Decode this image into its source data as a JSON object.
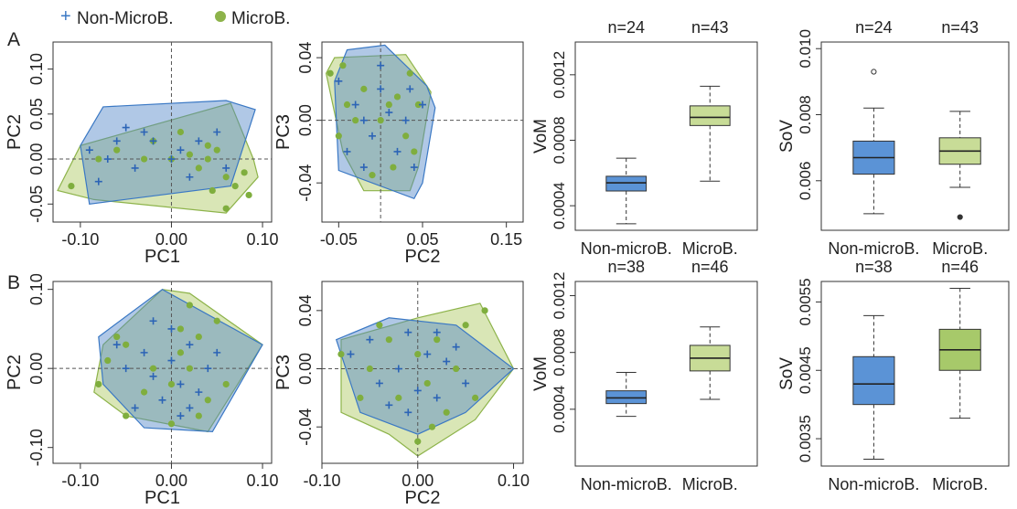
{
  "legend": {
    "items": [
      {
        "label": "Non-MicroB.",
        "symbol": "+",
        "color": "#3a78c4"
      },
      {
        "label": "MicroB.",
        "symbol": "●",
        "color": "#8db34a"
      }
    ],
    "placement": "top-left"
  },
  "panel_labels": [
    "A",
    "B"
  ],
  "colors": {
    "non_microb_hull_fill": "#4f85c8",
    "microb_hull_fill": "#b9d27a",
    "overlap_fill": "#3f7f83",
    "non_microb_box": "#5b93d6",
    "microb_box": "#c8dc97",
    "microb_box_B": "#a7c96a"
  },
  "chart_data": [
    {
      "id": "A-pc1-pc2",
      "type": "scatter",
      "xlabel": "PC1",
      "ylabel": "PC2",
      "xlim": [
        -0.13,
        0.11
      ],
      "ylim": [
        -0.07,
        0.13
      ],
      "xticks": [
        "-0.10",
        "0.00",
        "0.10"
      ],
      "xtick_values": [
        -0.1,
        0.0,
        0.1
      ],
      "yticks": [
        "-0.05",
        "0.00",
        "0.05",
        "0.10"
      ],
      "ytick_values": [
        -0.05,
        0.0,
        0.05,
        0.1
      ],
      "reflines": {
        "x": 0.0,
        "y": 0.0
      },
      "hull_non_microb": [
        [
          -0.1,
          0.015
        ],
        [
          -0.075,
          0.058
        ],
        [
          0.06,
          0.065
        ],
        [
          0.092,
          0.055
        ],
        [
          0.065,
          -0.03
        ],
        [
          -0.09,
          -0.05
        ]
      ],
      "hull_microb": [
        [
          -0.125,
          -0.035
        ],
        [
          -0.1,
          0.015
        ],
        [
          0.065,
          0.062
        ],
        [
          0.09,
          0.0
        ],
        [
          0.095,
          -0.02
        ],
        [
          0.06,
          -0.06
        ],
        [
          -0.085,
          -0.045
        ]
      ],
      "series": [
        {
          "name": "Non-MicroB.",
          "points": [
            [
              -0.09,
              0.01
            ],
            [
              -0.07,
              0.0
            ],
            [
              -0.06,
              0.02
            ],
            [
              -0.04,
              -0.01
            ],
            [
              -0.03,
              0.03
            ],
            [
              -0.02,
              0.02
            ],
            [
              0.0,
              0.0
            ],
            [
              0.01,
              0.01
            ],
            [
              0.03,
              0.02
            ],
            [
              0.05,
              0.03
            ],
            [
              -0.08,
              -0.025
            ],
            [
              -0.05,
              0.035
            ],
            [
              0.06,
              -0.01
            ],
            [
              0.02,
              -0.02
            ]
          ]
        },
        {
          "name": "MicroB.",
          "points": [
            [
              -0.11,
              -0.03
            ],
            [
              -0.08,
              0.0
            ],
            [
              -0.06,
              0.01
            ],
            [
              -0.03,
              0.0
            ],
            [
              0.0,
              0.0
            ],
            [
              0.02,
              0.005
            ],
            [
              0.03,
              -0.01
            ],
            [
              0.04,
              0.0
            ],
            [
              0.05,
              0.01
            ],
            [
              0.06,
              -0.02
            ],
            [
              0.07,
              -0.03
            ],
            [
              0.08,
              -0.015
            ],
            [
              0.085,
              -0.04
            ],
            [
              0.06,
              -0.055
            ],
            [
              0.04,
              0.015
            ],
            [
              0.01,
              0.03
            ],
            [
              -0.02,
              0.02
            ],
            [
              0.045,
              -0.035
            ]
          ]
        }
      ]
    },
    {
      "id": "A-pc2-pc3",
      "type": "scatter",
      "xlabel": "PC2",
      "ylabel": "PC3",
      "xlim": [
        -0.07,
        0.17
      ],
      "ylim": [
        -0.065,
        0.05
      ],
      "xticks": [
        "-0.05",
        "0.05",
        "0.15"
      ],
      "xtick_values": [
        -0.05,
        0.05,
        0.15
      ],
      "yticks": [
        "-0.04",
        "0.00",
        "0.04"
      ],
      "ytick_values": [
        -0.04,
        0.0,
        0.04
      ],
      "reflines": {
        "x": 0.0,
        "y": 0.0
      },
      "hull_non_microb": [
        [
          -0.055,
          0.025
        ],
        [
          -0.04,
          0.045
        ],
        [
          0.005,
          0.048
        ],
        [
          0.055,
          0.022
        ],
        [
          0.065,
          0.008
        ],
        [
          0.05,
          -0.04
        ],
        [
          0.04,
          -0.05
        ],
        [
          -0.05,
          -0.032
        ]
      ],
      "hull_microb": [
        [
          -0.065,
          0.03
        ],
        [
          -0.055,
          0.04
        ],
        [
          0.03,
          0.042
        ],
        [
          0.06,
          0.018
        ],
        [
          0.045,
          -0.03
        ],
        [
          0.035,
          -0.045
        ],
        [
          -0.02,
          -0.045
        ],
        [
          -0.045,
          -0.02
        ]
      ],
      "series": [
        {
          "name": "Non-MicroB.",
          "points": [
            [
              -0.05,
              0.025
            ],
            [
              -0.03,
              0.01
            ],
            [
              -0.02,
              0.0
            ],
            [
              -0.01,
              -0.01
            ],
            [
              0.0,
              0.02
            ],
            [
              0.01,
              0.005
            ],
            [
              0.02,
              -0.02
            ],
            [
              0.03,
              0.0
            ],
            [
              -0.04,
              -0.02
            ],
            [
              0.04,
              -0.03
            ],
            [
              0.05,
              0.01
            ],
            [
              -0.02,
              -0.03
            ],
            [
              0.0,
              0.035
            ],
            [
              0.035,
              0.02
            ]
          ]
        },
        {
          "name": "MicroB.",
          "points": [
            [
              -0.06,
              0.03
            ],
            [
              -0.05,
              -0.01
            ],
            [
              -0.04,
              0.01
            ],
            [
              -0.03,
              0.0
            ],
            [
              -0.02,
              0.02
            ],
            [
              0.0,
              0.0
            ],
            [
              0.01,
              0.01
            ],
            [
              0.02,
              0.015
            ],
            [
              0.03,
              -0.01
            ],
            [
              0.035,
              0.03
            ],
            [
              -0.01,
              -0.035
            ],
            [
              0.015,
              -0.03
            ],
            [
              0.04,
              -0.02
            ],
            [
              0.045,
              0.01
            ],
            [
              -0.045,
              0.035
            ]
          ]
        }
      ]
    },
    {
      "id": "A-vom",
      "type": "box",
      "ylabel": "VoM",
      "categories": [
        "Non-microB.",
        "MicroB."
      ],
      "n_labels": [
        "n=24",
        "n=43"
      ],
      "ylim": [
        0.00025,
        0.0014
      ],
      "yticks": [
        "0.0004",
        "0.0008",
        "0.0012"
      ],
      "ytick_values": [
        0.0004,
        0.0008,
        0.0012
      ],
      "boxes": [
        {
          "whisker_low": 0.00029,
          "q1": 0.00049,
          "median": 0.00054,
          "q3": 0.00058,
          "whisker_high": 0.00069,
          "outliers": []
        },
        {
          "whisker_low": 0.00055,
          "q1": 0.00089,
          "median": 0.00094,
          "q3": 0.00101,
          "whisker_high": 0.00113,
          "outliers": []
        }
      ]
    },
    {
      "id": "A-sov",
      "type": "box",
      "ylabel": "SoV",
      "categories": [
        "Non-microB.",
        "MicroB."
      ],
      "n_labels": [
        "n=24",
        "n=43"
      ],
      "ylim": [
        0.0045,
        0.0102
      ],
      "yticks": [
        "0.006",
        "0.008",
        "0.010"
      ],
      "ytick_values": [
        0.006,
        0.008,
        0.01
      ],
      "boxes": [
        {
          "whisker_low": 0.005,
          "q1": 0.0062,
          "median": 0.0067,
          "q3": 0.0072,
          "whisker_high": 0.0082,
          "outliers": [
            0.0093
          ]
        },
        {
          "whisker_low": 0.0058,
          "q1": 0.0065,
          "median": 0.0069,
          "q3": 0.0073,
          "whisker_high": 0.0081,
          "outliers": [
            0.0049
          ]
        }
      ]
    },
    {
      "id": "B-pc1-pc2",
      "type": "scatter",
      "xlabel": "PC1",
      "ylabel": "PC2",
      "xlim": [
        -0.13,
        0.11
      ],
      "ylim": [
        -0.12,
        0.11
      ],
      "xticks": [
        "-0.10",
        "0.00",
        "0.10"
      ],
      "xtick_values": [
        -0.1,
        0.0,
        0.1
      ],
      "yticks": [
        "-0.10",
        "0.00",
        "0.10"
      ],
      "ytick_values": [
        -0.1,
        0.0,
        0.1
      ],
      "reflines": {
        "x": 0.0,
        "y": 0.0
      },
      "hull_non_microb": [
        [
          -0.08,
          0.04
        ],
        [
          -0.01,
          0.1
        ],
        [
          0.1,
          0.03
        ],
        [
          0.045,
          -0.08
        ],
        [
          -0.03,
          -0.075
        ],
        [
          -0.075,
          -0.02
        ]
      ],
      "hull_microb": [
        [
          -0.085,
          -0.03
        ],
        [
          -0.075,
          0.03
        ],
        [
          -0.01,
          0.1
        ],
        [
          0.02,
          0.095
        ],
        [
          0.1,
          0.03
        ],
        [
          0.04,
          -0.08
        ],
        [
          -0.05,
          -0.06
        ]
      ],
      "series": [
        {
          "name": "Non-MicroB.",
          "points": [
            [
              -0.06,
              0.03
            ],
            [
              -0.05,
              0.0
            ],
            [
              -0.03,
              0.02
            ],
            [
              -0.02,
              -0.01
            ],
            [
              0.0,
              0.01
            ],
            [
              0.01,
              -0.02
            ],
            [
              0.02,
              0.03
            ],
            [
              0.03,
              -0.03
            ],
            [
              0.0,
              0.05
            ],
            [
              -0.01,
              -0.04
            ],
            [
              0.04,
              0.0
            ],
            [
              -0.04,
              -0.05
            ],
            [
              0.02,
              -0.05
            ],
            [
              0.05,
              0.02
            ],
            [
              -0.02,
              0.06
            ],
            [
              0.01,
              -0.06
            ]
          ]
        },
        {
          "name": "MicroB.",
          "points": [
            [
              -0.08,
              -0.02
            ],
            [
              -0.07,
              0.01
            ],
            [
              -0.05,
              0.03
            ],
            [
              -0.03,
              -0.03
            ],
            [
              -0.02,
              0.0
            ],
            [
              0.0,
              -0.02
            ],
            [
              0.01,
              0.02
            ],
            [
              0.02,
              0.0
            ],
            [
              0.03,
              0.04
            ],
            [
              0.04,
              -0.04
            ],
            [
              0.05,
              0.06
            ],
            [
              0.06,
              -0.02
            ],
            [
              0.02,
              0.08
            ],
            [
              -0.05,
              -0.06
            ],
            [
              0.0,
              -0.07
            ],
            [
              0.03,
              -0.06
            ],
            [
              -0.06,
              0.04
            ],
            [
              0.01,
              0.05
            ]
          ]
        }
      ]
    },
    {
      "id": "B-pc2-pc3",
      "type": "scatter",
      "xlabel": "PC2",
      "ylabel": "PC3",
      "xlim": [
        -0.1,
        0.11
      ],
      "ylim": [
        -0.065,
        0.06
      ],
      "xticks": [
        "-0.10",
        "0.00",
        "0.10"
      ],
      "xtick_values": [
        -0.1,
        0.0,
        0.1
      ],
      "yticks": [
        "-0.04",
        "0.00",
        "0.04"
      ],
      "ytick_values": [
        -0.04,
        0.0,
        0.04
      ],
      "reflines": {
        "x": 0.0,
        "y": 0.0
      },
      "hull_non_microb": [
        [
          -0.085,
          0.02
        ],
        [
          -0.03,
          0.035
        ],
        [
          0.04,
          0.03
        ],
        [
          0.1,
          0.0
        ],
        [
          0.05,
          -0.03
        ],
        [
          0.0,
          -0.045
        ],
        [
          -0.06,
          -0.03
        ]
      ],
      "hull_microb": [
        [
          -0.08,
          -0.03
        ],
        [
          -0.08,
          0.02
        ],
        [
          0.0,
          0.035
        ],
        [
          0.065,
          0.045
        ],
        [
          0.1,
          0.0
        ],
        [
          0.06,
          -0.035
        ],
        [
          0.0,
          -0.06
        ],
        [
          -0.03,
          -0.045
        ]
      ],
      "series": [
        {
          "name": "Non-MicroB.",
          "points": [
            [
              -0.07,
              0.01
            ],
            [
              -0.05,
              0.02
            ],
            [
              -0.04,
              -0.01
            ],
            [
              -0.02,
              0.0
            ],
            [
              -0.01,
              0.025
            ],
            [
              0.0,
              -0.015
            ],
            [
              0.01,
              0.01
            ],
            [
              0.02,
              -0.02
            ],
            [
              0.03,
              0.005
            ],
            [
              -0.03,
              -0.025
            ],
            [
              0.04,
              0.015
            ],
            [
              -0.01,
              -0.03
            ],
            [
              0.02,
              0.025
            ],
            [
              0.05,
              -0.01
            ]
          ]
        },
        {
          "name": "MicroB.",
          "points": [
            [
              -0.08,
              0.01
            ],
            [
              -0.06,
              -0.02
            ],
            [
              -0.05,
              0.0
            ],
            [
              -0.03,
              0.02
            ],
            [
              -0.02,
              -0.02
            ],
            [
              0.0,
              0.01
            ],
            [
              0.01,
              -0.01
            ],
            [
              0.02,
              0.02
            ],
            [
              0.03,
              -0.03
            ],
            [
              0.04,
              0.0
            ],
            [
              0.05,
              0.03
            ],
            [
              0.06,
              -0.02
            ],
            [
              0.0,
              -0.05
            ],
            [
              -0.04,
              0.03
            ],
            [
              0.07,
              0.04
            ],
            [
              0.015,
              -0.04
            ]
          ]
        }
      ]
    },
    {
      "id": "B-vom",
      "type": "box",
      "ylabel": "VoM",
      "categories": [
        "Non-microB.",
        "MicroB."
      ],
      "n_labels": [
        "n=38",
        "n=46"
      ],
      "ylim": [
        0.0,
        0.0013
      ],
      "yticks": [
        "0.0004",
        "0.0008",
        "0.0012"
      ],
      "ytick_values": [
        0.0004,
        0.0008,
        0.0012
      ],
      "boxes": [
        {
          "whisker_low": 0.00035,
          "q1": 0.00044,
          "median": 0.00048,
          "q3": 0.00053,
          "whisker_high": 0.00066,
          "outliers": []
        },
        {
          "whisker_low": 0.00047,
          "q1": 0.00067,
          "median": 0.00076,
          "q3": 0.00085,
          "whisker_high": 0.00098,
          "outliers": []
        }
      ]
    },
    {
      "id": "B-sov",
      "type": "box",
      "ylabel": "SoV",
      "categories": [
        "Non-microB.",
        "MicroB."
      ],
      "n_labels": [
        "n=38",
        "n=46"
      ],
      "ylim": [
        0.0031,
        0.0058
      ],
      "yticks": [
        "0.0035",
        "0.0045",
        "0.0055"
      ],
      "ytick_values": [
        0.0035,
        0.0045,
        0.0055
      ],
      "boxes": [
        {
          "whisker_low": 0.0032,
          "q1": 0.004,
          "median": 0.0043,
          "q3": 0.0047,
          "whisker_high": 0.0053,
          "outliers": []
        },
        {
          "whisker_low": 0.0038,
          "q1": 0.0045,
          "median": 0.0048,
          "q3": 0.0051,
          "whisker_high": 0.0057,
          "outliers": []
        }
      ]
    }
  ]
}
